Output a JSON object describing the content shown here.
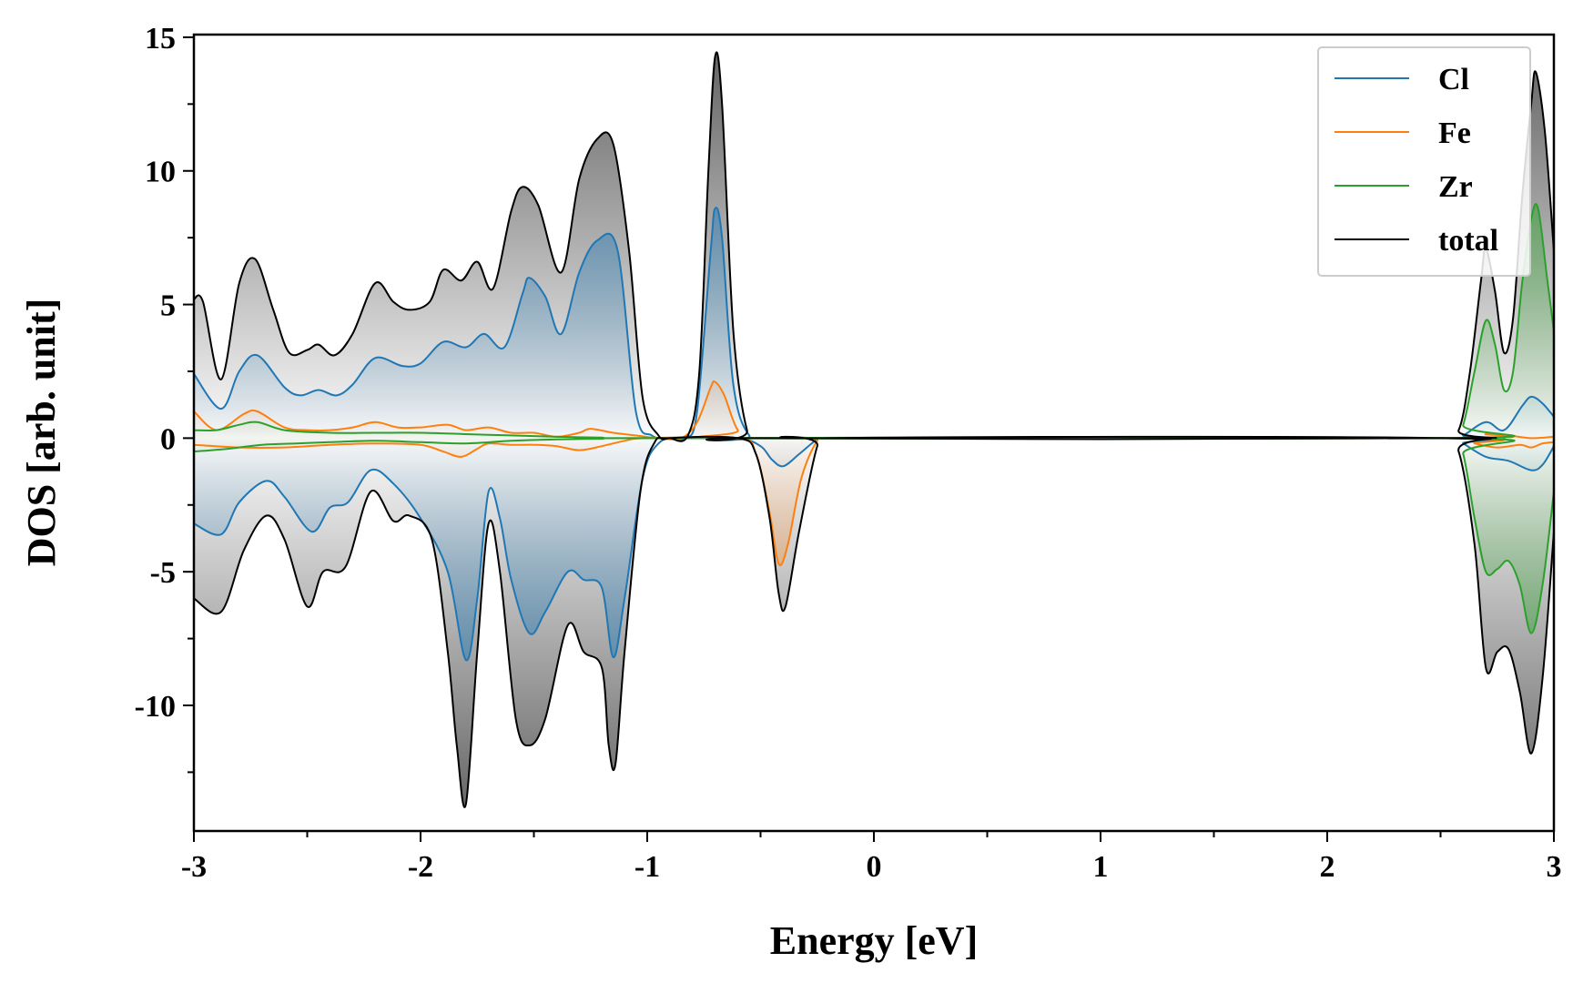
{
  "chart_data": {
    "type": "area",
    "title": "",
    "xlabel": "Energy [eV]",
    "ylabel": "DOS [arb. unit]",
    "xlim": [
      -3,
      3
    ],
    "ylim": [
      -14.7,
      15.1
    ],
    "x_ticks": [
      "-3",
      "-2",
      "-1",
      "0",
      "1",
      "2",
      "3"
    ],
    "y_ticks": [
      "15",
      "10",
      "5",
      "0",
      "-5",
      "-10"
    ],
    "grid": false,
    "legend_position": "top-right",
    "series": [
      {
        "name": "Cl",
        "color": "#1f77b4",
        "fill": true,
        "up": [
          [
            -3.0,
            2.4
          ],
          [
            -2.88,
            1.1
          ],
          [
            -2.8,
            2.5
          ],
          [
            -2.72,
            3.1
          ],
          [
            -2.6,
            1.9
          ],
          [
            -2.53,
            1.6
          ],
          [
            -2.45,
            1.8
          ],
          [
            -2.37,
            1.6
          ],
          [
            -2.3,
            2.0
          ],
          [
            -2.2,
            3.0
          ],
          [
            -2.08,
            2.7
          ],
          [
            -2.0,
            2.8
          ],
          [
            -1.9,
            3.6
          ],
          [
            -1.8,
            3.4
          ],
          [
            -1.72,
            3.9
          ],
          [
            -1.63,
            3.4
          ],
          [
            -1.55,
            5.4
          ],
          [
            -1.52,
            6.0
          ],
          [
            -1.45,
            5.3
          ],
          [
            -1.38,
            3.9
          ],
          [
            -1.3,
            6.2
          ],
          [
            -1.22,
            7.4
          ],
          [
            -1.13,
            7.0
          ],
          [
            -1.05,
            1.0
          ],
          [
            -0.98,
            0.1
          ],
          [
            -0.9,
            0.0
          ],
          [
            -0.83,
            0.0
          ],
          [
            -0.78,
            1.0
          ],
          [
            -0.72,
            7.0
          ],
          [
            -0.7,
            8.6
          ],
          [
            -0.67,
            7.5
          ],
          [
            -0.62,
            2.0
          ],
          [
            -0.55,
            0.1
          ],
          [
            -0.45,
            0.0
          ],
          [
            2.55,
            0.0
          ],
          [
            2.6,
            0.1
          ],
          [
            2.7,
            0.6
          ],
          [
            2.78,
            0.3
          ],
          [
            2.86,
            1.2
          ],
          [
            2.9,
            1.55
          ],
          [
            2.95,
            1.3
          ],
          [
            3.0,
            0.8
          ]
        ],
        "down": [
          [
            -3.0,
            -3.2
          ],
          [
            -2.88,
            -3.6
          ],
          [
            -2.8,
            -2.4
          ],
          [
            -2.68,
            -1.6
          ],
          [
            -2.6,
            -2.2
          ],
          [
            -2.48,
            -3.5
          ],
          [
            -2.4,
            -2.6
          ],
          [
            -2.32,
            -2.4
          ],
          [
            -2.22,
            -1.2
          ],
          [
            -2.12,
            -1.7
          ],
          [
            -2.0,
            -3.0
          ],
          [
            -1.88,
            -5.0
          ],
          [
            -1.8,
            -8.3
          ],
          [
            -1.75,
            -6.0
          ],
          [
            -1.7,
            -2.0
          ],
          [
            -1.65,
            -3.0
          ],
          [
            -1.6,
            -5.3
          ],
          [
            -1.52,
            -7.3
          ],
          [
            -1.45,
            -6.5
          ],
          [
            -1.35,
            -5.0
          ],
          [
            -1.28,
            -5.3
          ],
          [
            -1.2,
            -5.6
          ],
          [
            -1.15,
            -8.2
          ],
          [
            -1.1,
            -6.0
          ],
          [
            -1.02,
            -1.5
          ],
          [
            -0.95,
            -0.2
          ],
          [
            -0.85,
            0.0
          ],
          [
            -0.6,
            0.0
          ],
          [
            -0.5,
            -0.3
          ],
          [
            -0.45,
            -0.8
          ],
          [
            -0.4,
            -1.05
          ],
          [
            -0.33,
            -0.6
          ],
          [
            -0.25,
            -0.05
          ],
          [
            -0.2,
            0.0
          ],
          [
            2.55,
            0.0
          ],
          [
            2.6,
            -0.2
          ],
          [
            2.7,
            -0.7
          ],
          [
            2.8,
            -0.85
          ],
          [
            2.9,
            -1.2
          ],
          [
            2.95,
            -1.0
          ],
          [
            3.0,
            -0.3
          ]
        ]
      },
      {
        "name": "Fe",
        "color": "#ff7f0e",
        "fill": true,
        "up": [
          [
            -3.0,
            1.0
          ],
          [
            -2.9,
            0.3
          ],
          [
            -2.78,
            0.9
          ],
          [
            -2.72,
            1.0
          ],
          [
            -2.6,
            0.4
          ],
          [
            -2.5,
            0.3
          ],
          [
            -2.4,
            0.3
          ],
          [
            -2.3,
            0.4
          ],
          [
            -2.2,
            0.6
          ],
          [
            -2.1,
            0.4
          ],
          [
            -2.0,
            0.4
          ],
          [
            -1.88,
            0.5
          ],
          [
            -1.8,
            0.3
          ],
          [
            -1.7,
            0.4
          ],
          [
            -1.6,
            0.2
          ],
          [
            -1.5,
            0.2
          ],
          [
            -1.4,
            0.05
          ],
          [
            -1.3,
            0.2
          ],
          [
            -1.25,
            0.35
          ],
          [
            -1.15,
            0.2
          ],
          [
            -1.05,
            0.1
          ],
          [
            -0.95,
            0.0
          ],
          [
            -0.85,
            0.0
          ],
          [
            -0.78,
            0.6
          ],
          [
            -0.72,
            1.9
          ],
          [
            -0.7,
            2.1
          ],
          [
            -0.66,
            1.6
          ],
          [
            -0.6,
            0.3
          ],
          [
            -0.52,
            0.0
          ],
          [
            2.55,
            0.0
          ],
          [
            2.7,
            0.15
          ],
          [
            2.8,
            0.1
          ],
          [
            2.9,
            0.0
          ],
          [
            3.0,
            0.05
          ]
        ],
        "down": [
          [
            -3.0,
            -0.25
          ],
          [
            -2.8,
            -0.35
          ],
          [
            -2.6,
            -0.35
          ],
          [
            -2.4,
            -0.25
          ],
          [
            -2.2,
            -0.2
          ],
          [
            -2.0,
            -0.25
          ],
          [
            -1.9,
            -0.5
          ],
          [
            -1.82,
            -0.7
          ],
          [
            -1.75,
            -0.4
          ],
          [
            -1.7,
            -0.2
          ],
          [
            -1.6,
            -0.25
          ],
          [
            -1.5,
            -0.25
          ],
          [
            -1.4,
            -0.3
          ],
          [
            -1.3,
            -0.45
          ],
          [
            -1.2,
            -0.3
          ],
          [
            -1.1,
            -0.1
          ],
          [
            -1.0,
            0.0
          ],
          [
            -0.6,
            0.0
          ],
          [
            -0.52,
            -0.6
          ],
          [
            -0.46,
            -2.8
          ],
          [
            -0.42,
            -4.7
          ],
          [
            -0.38,
            -4.0
          ],
          [
            -0.32,
            -1.5
          ],
          [
            -0.25,
            -0.1
          ],
          [
            -0.2,
            0.0
          ],
          [
            2.55,
            0.0
          ],
          [
            2.65,
            -0.2
          ],
          [
            2.75,
            -0.35
          ],
          [
            2.85,
            -0.25
          ],
          [
            2.9,
            -0.35
          ],
          [
            2.95,
            -0.2
          ],
          [
            3.0,
            -0.15
          ]
        ]
      },
      {
        "name": "Zr",
        "color": "#2ca02c",
        "fill": true,
        "up": [
          [
            -3.0,
            0.3
          ],
          [
            -2.9,
            0.3
          ],
          [
            -2.8,
            0.5
          ],
          [
            -2.72,
            0.6
          ],
          [
            -2.6,
            0.3
          ],
          [
            -2.4,
            0.2
          ],
          [
            -2.2,
            0.2
          ],
          [
            -2.0,
            0.2
          ],
          [
            -1.8,
            0.15
          ],
          [
            -1.6,
            0.1
          ],
          [
            -1.4,
            0.05
          ],
          [
            -1.2,
            0.02
          ],
          [
            -1.0,
            0.0
          ],
          [
            2.55,
            0.0
          ],
          [
            2.6,
            0.5
          ],
          [
            2.65,
            2.5
          ],
          [
            2.7,
            4.4
          ],
          [
            2.74,
            3.5
          ],
          [
            2.78,
            1.8
          ],
          [
            2.82,
            2.5
          ],
          [
            2.86,
            5.8
          ],
          [
            2.9,
            8.2
          ],
          [
            2.93,
            8.6
          ],
          [
            2.97,
            6.0
          ],
          [
            3.0,
            4.0
          ]
        ],
        "down": [
          [
            -3.0,
            -0.5
          ],
          [
            -2.85,
            -0.4
          ],
          [
            -2.7,
            -0.25
          ],
          [
            -2.55,
            -0.2
          ],
          [
            -2.4,
            -0.15
          ],
          [
            -2.2,
            -0.1
          ],
          [
            -2.0,
            -0.15
          ],
          [
            -1.8,
            -0.2
          ],
          [
            -1.6,
            -0.1
          ],
          [
            -1.4,
            -0.05
          ],
          [
            -1.2,
            -0.02
          ],
          [
            -1.0,
            0.0
          ],
          [
            2.55,
            0.0
          ],
          [
            2.6,
            -0.6
          ],
          [
            2.65,
            -3.0
          ],
          [
            2.7,
            -5.0
          ],
          [
            2.75,
            -4.9
          ],
          [
            2.8,
            -4.6
          ],
          [
            2.85,
            -5.5
          ],
          [
            2.9,
            -7.3
          ],
          [
            2.95,
            -5.5
          ],
          [
            3.0,
            -2.0
          ]
        ]
      },
      {
        "name": "total",
        "color": "#000000",
        "fill": true,
        "up": [
          [
            -3.0,
            5.2
          ],
          [
            -2.96,
            5.1
          ],
          [
            -2.88,
            2.2
          ],
          [
            -2.8,
            5.8
          ],
          [
            -2.73,
            6.7
          ],
          [
            -2.65,
            4.8
          ],
          [
            -2.58,
            3.2
          ],
          [
            -2.5,
            3.3
          ],
          [
            -2.45,
            3.5
          ],
          [
            -2.38,
            3.1
          ],
          [
            -2.3,
            3.9
          ],
          [
            -2.2,
            5.8
          ],
          [
            -2.12,
            5.1
          ],
          [
            -2.05,
            4.8
          ],
          [
            -1.96,
            5.1
          ],
          [
            -1.9,
            6.3
          ],
          [
            -1.82,
            5.9
          ],
          [
            -1.75,
            6.6
          ],
          [
            -1.68,
            5.6
          ],
          [
            -1.6,
            8.5
          ],
          [
            -1.55,
            9.4
          ],
          [
            -1.48,
            8.7
          ],
          [
            -1.38,
            6.2
          ],
          [
            -1.3,
            9.7
          ],
          [
            -1.22,
            11.2
          ],
          [
            -1.15,
            11.0
          ],
          [
            -1.08,
            7.0
          ],
          [
            -1.02,
            1.5
          ],
          [
            -0.95,
            0.1
          ],
          [
            -0.9,
            0.0
          ],
          [
            -0.82,
            0.1
          ],
          [
            -0.77,
            2.5
          ],
          [
            -0.73,
            10.0
          ],
          [
            -0.7,
            14.3
          ],
          [
            -0.67,
            12.5
          ],
          [
            -0.62,
            4.0
          ],
          [
            -0.56,
            0.3
          ],
          [
            -0.5,
            0.0
          ],
          [
            2.5,
            0.0
          ],
          [
            2.58,
            0.3
          ],
          [
            2.63,
            2.5
          ],
          [
            2.68,
            6.0
          ],
          [
            2.7,
            7.1
          ],
          [
            2.74,
            5.5
          ],
          [
            2.78,
            3.2
          ],
          [
            2.82,
            4.5
          ],
          [
            2.86,
            9.0
          ],
          [
            2.9,
            12.5
          ],
          [
            2.92,
            13.7
          ],
          [
            2.96,
            11.5
          ],
          [
            3.0,
            7.0
          ]
        ],
        "down": [
          [
            -3.0,
            -6.0
          ],
          [
            -2.88,
            -6.5
          ],
          [
            -2.78,
            -4.2
          ],
          [
            -2.68,
            -2.9
          ],
          [
            -2.6,
            -3.8
          ],
          [
            -2.5,
            -6.3
          ],
          [
            -2.43,
            -5.0
          ],
          [
            -2.33,
            -4.8
          ],
          [
            -2.22,
            -2.0
          ],
          [
            -2.12,
            -3.1
          ],
          [
            -2.05,
            -2.9
          ],
          [
            -1.95,
            -3.8
          ],
          [
            -1.88,
            -8.0
          ],
          [
            -1.84,
            -11.5
          ],
          [
            -1.8,
            -13.7
          ],
          [
            -1.75,
            -8.0
          ],
          [
            -1.7,
            -3.2
          ],
          [
            -1.65,
            -5.0
          ],
          [
            -1.58,
            -10.5
          ],
          [
            -1.52,
            -11.5
          ],
          [
            -1.45,
            -10.5
          ],
          [
            -1.35,
            -7.0
          ],
          [
            -1.28,
            -8.0
          ],
          [
            -1.2,
            -8.6
          ],
          [
            -1.17,
            -11.5
          ],
          [
            -1.14,
            -12.2
          ],
          [
            -1.1,
            -8.0
          ],
          [
            -1.03,
            -2.0
          ],
          [
            -0.97,
            -0.2
          ],
          [
            -0.9,
            0.0
          ],
          [
            -0.6,
            0.0
          ],
          [
            -0.52,
            -0.6
          ],
          [
            -0.46,
            -3.0
          ],
          [
            -0.42,
            -5.8
          ],
          [
            -0.39,
            -6.3
          ],
          [
            -0.33,
            -3.5
          ],
          [
            -0.25,
            -0.3
          ],
          [
            -0.2,
            0.0
          ],
          [
            2.5,
            0.0
          ],
          [
            2.58,
            -0.5
          ],
          [
            2.65,
            -4.0
          ],
          [
            2.7,
            -8.6
          ],
          [
            2.75,
            -8.0
          ],
          [
            2.8,
            -7.9
          ],
          [
            2.85,
            -9.5
          ],
          [
            2.9,
            -11.8
          ],
          [
            2.95,
            -9.0
          ],
          [
            3.0,
            -3.5
          ]
        ]
      }
    ]
  }
}
